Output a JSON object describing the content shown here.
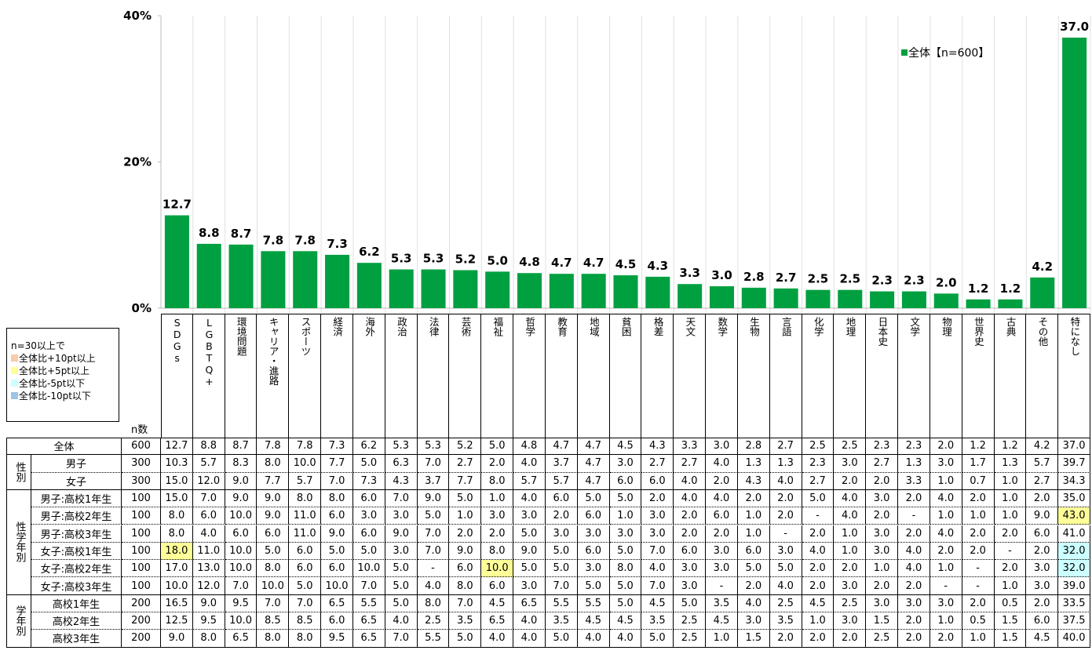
{
  "chart_data": {
    "type": "bar",
    "categories": [
      "SDGs",
      "LGBTQ+",
      "環境問題",
      "キャリア・進路",
      "スポーツ",
      "経済",
      "海外",
      "政治",
      "法律",
      "芸術",
      "福祉",
      "哲学",
      "教育",
      "地域",
      "貧困",
      "格差",
      "天文",
      "数学",
      "生物",
      "言語",
      "化学",
      "地理",
      "日本史",
      "文学",
      "物理",
      "世界史",
      "古典",
      "その他",
      "特になし"
    ],
    "series": [
      {
        "name": "全体【n=600】",
        "color": "#00a040",
        "values": [
          12.7,
          8.8,
          8.7,
          7.8,
          7.8,
          7.3,
          6.2,
          5.3,
          5.3,
          5.2,
          5.0,
          4.8,
          4.7,
          4.7,
          4.5,
          4.3,
          3.3,
          3.0,
          2.8,
          2.7,
          2.5,
          2.5,
          2.3,
          2.3,
          2.0,
          1.2,
          1.2,
          4.2,
          37.0
        ],
        "value_labels": [
          "12.7",
          "8.8",
          "8.7",
          "7.8",
          "7.8",
          "7.3",
          "6.2",
          "5.3",
          "5.3",
          "5.2",
          "5.0",
          "4.8",
          "4.7",
          "4.7",
          "4.5",
          "4.3",
          "3.3",
          "3.0",
          "2.8",
          "2.7",
          "2.5",
          "2.5",
          "2.3",
          "2.3",
          "2.0",
          "1.2",
          "1.2",
          "4.2",
          "37.0"
        ]
      }
    ],
    "ylim": [
      0,
      40
    ],
    "yticks": [
      {
        "value": 0,
        "label": "0%"
      },
      {
        "value": 20,
        "label": "20%"
      },
      {
        "value": 40,
        "label": "40%"
      }
    ],
    "grid": true,
    "legend": "upper right"
  },
  "legend_box": {
    "title": "n=30以上で",
    "items": [
      {
        "label": "全体比+10pt以上",
        "color": "#f8cbad"
      },
      {
        "label": "全体比+5pt以上",
        "color": "#ffff99"
      },
      {
        "label": "全体比-5pt以下",
        "color": "#ccffff"
      },
      {
        "label": "全体比-10pt以下",
        "color": "#9dc3e6"
      }
    ]
  },
  "table": {
    "n_header": "n数",
    "total": {
      "label": "全体",
      "n": "600",
      "cells": [
        "12.7",
        "8.8",
        "8.7",
        "7.8",
        "7.8",
        "7.3",
        "6.2",
        "5.3",
        "5.3",
        "5.2",
        "5.0",
        "4.8",
        "4.7",
        "4.7",
        "4.5",
        "4.3",
        "3.3",
        "3.0",
        "2.8",
        "2.7",
        "2.5",
        "2.5",
        "2.3",
        "2.3",
        "2.0",
        "1.2",
        "1.2",
        "4.2",
        "37.0"
      ]
    },
    "groups": [
      {
        "label": "性別",
        "rows": [
          {
            "label": "男子",
            "n": "300",
            "cells": [
              "10.3",
              "5.7",
              "8.3",
              "8.0",
              "10.0",
              "7.7",
              "5.0",
              "6.3",
              "7.0",
              "2.7",
              "2.0",
              "4.0",
              "3.7",
              "4.7",
              "3.0",
              "2.7",
              "2.7",
              "4.0",
              "1.3",
              "1.3",
              "2.3",
              "3.0",
              "2.7",
              "1.3",
              "3.0",
              "1.7",
              "1.3",
              "5.7",
              "39.7"
            ]
          },
          {
            "label": "女子",
            "n": "300",
            "cells": [
              "15.0",
              "12.0",
              "9.0",
              "7.7",
              "5.7",
              "7.0",
              "7.3",
              "4.3",
              "3.7",
              "7.7",
              "8.0",
              "5.7",
              "5.7",
              "4.7",
              "6.0",
              "6.0",
              "4.0",
              "2.0",
              "4.3",
              "4.0",
              "2.7",
              "2.0",
              "2.0",
              "3.3",
              "1.0",
              "0.7",
              "1.0",
              "2.7",
              "34.3"
            ]
          }
        ]
      },
      {
        "label": "性学年別",
        "rows": [
          {
            "label": "男子:高校1年生",
            "n": "100",
            "cells": [
              "15.0",
              "7.0",
              "9.0",
              "9.0",
              "8.0",
              "8.0",
              "6.0",
              "7.0",
              "9.0",
              "5.0",
              "1.0",
              "4.0",
              "6.0",
              "5.0",
              "5.0",
              "2.0",
              "4.0",
              "4.0",
              "2.0",
              "2.0",
              "5.0",
              "4.0",
              "3.0",
              "2.0",
              "4.0",
              "2.0",
              "1.0",
              "2.0",
              "35.0"
            ]
          },
          {
            "label": "男子:高校2年生",
            "n": "100",
            "cells": [
              "8.0",
              "6.0",
              "10.0",
              "9.0",
              "11.0",
              "6.0",
              "3.0",
              "3.0",
              "5.0",
              "1.0",
              "3.0",
              "3.0",
              "2.0",
              "6.0",
              "1.0",
              "3.0",
              "2.0",
              "6.0",
              "1.0",
              "2.0",
              "-",
              "4.0",
              "2.0",
              "-",
              "1.0",
              "1.0",
              "1.0",
              "9.0",
              "43.0"
            ],
            "cell_colors": [
              null,
              null,
              null,
              null,
              null,
              null,
              null,
              null,
              null,
              null,
              null,
              null,
              null,
              null,
              null,
              null,
              null,
              null,
              null,
              null,
              null,
              null,
              null,
              null,
              null,
              null,
              null,
              null,
              "#ffff99"
            ]
          },
          {
            "label": "男子:高校3年生",
            "n": "100",
            "cells": [
              "8.0",
              "4.0",
              "6.0",
              "6.0",
              "11.0",
              "9.0",
              "6.0",
              "9.0",
              "7.0",
              "2.0",
              "2.0",
              "5.0",
              "3.0",
              "3.0",
              "3.0",
              "3.0",
              "2.0",
              "2.0",
              "1.0",
              "-",
              "2.0",
              "1.0",
              "3.0",
              "2.0",
              "4.0",
              "2.0",
              "2.0",
              "6.0",
              "41.0"
            ]
          },
          {
            "label": "女子:高校1年生",
            "n": "100",
            "cells": [
              "18.0",
              "11.0",
              "10.0",
              "5.0",
              "6.0",
              "5.0",
              "5.0",
              "3.0",
              "7.0",
              "9.0",
              "8.0",
              "9.0",
              "5.0",
              "6.0",
              "5.0",
              "7.0",
              "6.0",
              "3.0",
              "6.0",
              "3.0",
              "4.0",
              "1.0",
              "3.0",
              "4.0",
              "2.0",
              "2.0",
              "-",
              "2.0",
              "32.0"
            ],
            "cell_colors": [
              "#ffff99",
              null,
              null,
              null,
              null,
              null,
              null,
              null,
              null,
              null,
              null,
              null,
              null,
              null,
              null,
              null,
              null,
              null,
              null,
              null,
              null,
              null,
              null,
              null,
              null,
              null,
              null,
              null,
              "#ccffff"
            ]
          },
          {
            "label": "女子:高校2年生",
            "n": "100",
            "cells": [
              "17.0",
              "13.0",
              "10.0",
              "8.0",
              "6.0",
              "6.0",
              "10.0",
              "5.0",
              "-",
              "6.0",
              "10.0",
              "5.0",
              "5.0",
              "3.0",
              "8.0",
              "4.0",
              "3.0",
              "3.0",
              "5.0",
              "5.0",
              "2.0",
              "2.0",
              "1.0",
              "4.0",
              "1.0",
              "-",
              "2.0",
              "3.0",
              "32.0"
            ],
            "cell_colors": [
              null,
              null,
              null,
              null,
              null,
              null,
              null,
              null,
              null,
              null,
              "#ffff99",
              null,
              null,
              null,
              null,
              null,
              null,
              null,
              null,
              null,
              null,
              null,
              null,
              null,
              null,
              null,
              null,
              null,
              "#ccffff"
            ]
          },
          {
            "label": "女子:高校3年生",
            "n": "100",
            "cells": [
              "10.0",
              "12.0",
              "7.0",
              "10.0",
              "5.0",
              "10.0",
              "7.0",
              "5.0",
              "4.0",
              "8.0",
              "6.0",
              "3.0",
              "7.0",
              "5.0",
              "5.0",
              "7.0",
              "3.0",
              "-",
              "2.0",
              "4.0",
              "2.0",
              "3.0",
              "2.0",
              "2.0",
              "-",
              "-",
              "1.0",
              "3.0",
              "39.0"
            ]
          }
        ]
      },
      {
        "label": "学年別",
        "rows": [
          {
            "label": "高校1年生",
            "n": "200",
            "cells": [
              "16.5",
              "9.0",
              "9.5",
              "7.0",
              "7.0",
              "6.5",
              "5.5",
              "5.0",
              "8.0",
              "7.0",
              "4.5",
              "6.5",
              "5.5",
              "5.5",
              "5.0",
              "4.5",
              "5.0",
              "3.5",
              "4.0",
              "2.5",
              "4.5",
              "2.5",
              "3.0",
              "3.0",
              "3.0",
              "2.0",
              "0.5",
              "2.0",
              "33.5"
            ]
          },
          {
            "label": "高校2年生",
            "n": "200",
            "cells": [
              "12.5",
              "9.5",
              "10.0",
              "8.5",
              "8.5",
              "6.0",
              "6.5",
              "4.0",
              "2.5",
              "3.5",
              "6.5",
              "4.0",
              "3.5",
              "4.5",
              "4.5",
              "3.5",
              "2.5",
              "4.5",
              "3.0",
              "3.5",
              "1.0",
              "3.0",
              "1.5",
              "2.0",
              "1.0",
              "0.5",
              "1.5",
              "6.0",
              "37.5"
            ]
          },
          {
            "label": "高校3年生",
            "n": "200",
            "cells": [
              "9.0",
              "8.0",
              "6.5",
              "8.0",
              "8.0",
              "9.5",
              "6.5",
              "7.0",
              "5.5",
              "5.0",
              "4.0",
              "4.0",
              "5.0",
              "4.0",
              "4.0",
              "5.0",
              "2.5",
              "1.0",
              "1.5",
              "2.0",
              "2.0",
              "2.0",
              "2.5",
              "2.0",
              "2.0",
              "1.0",
              "1.5",
              "4.5",
              "40.0"
            ]
          }
        ]
      }
    ]
  }
}
